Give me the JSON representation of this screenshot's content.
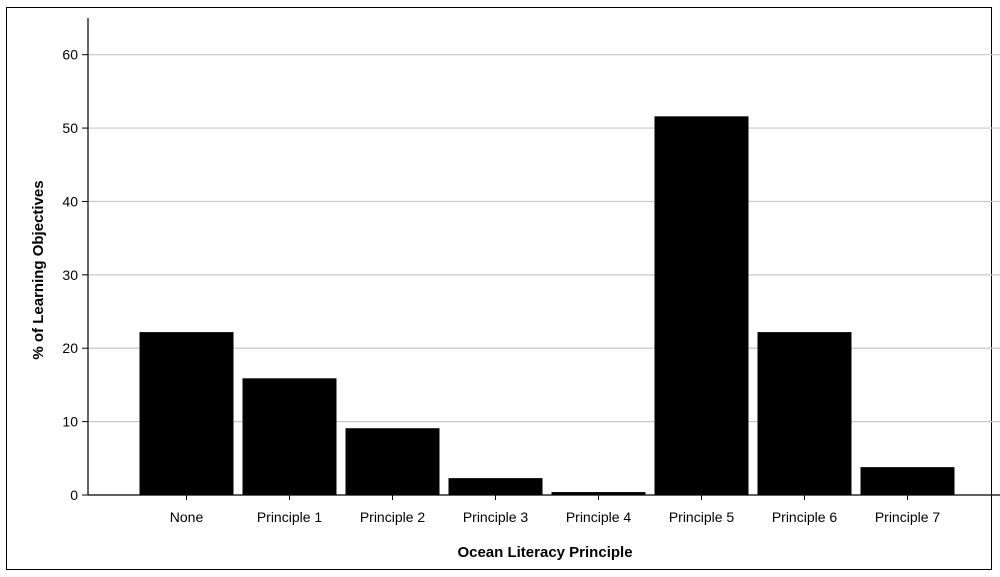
{
  "chart_data": {
    "type": "bar",
    "title": "",
    "xlabel": "Ocean Literacy Principle",
    "ylabel": "% of Learning Objectives",
    "categories": [
      "None",
      "Principle 1",
      "Principle 2",
      "Principle 3",
      "Principle 4",
      "Principle 5",
      "Principle 6",
      "Principle 7"
    ],
    "values": [
      22.2,
      15.9,
      9.1,
      2.3,
      0.4,
      51.6,
      22.2,
      3.8
    ],
    "ylim": [
      0,
      65
    ],
    "yticks": [
      0,
      10,
      20,
      30,
      40,
      50,
      60
    ],
    "grid": true,
    "bar_color": "#000000",
    "grid_color": "#c8c8c8"
  }
}
